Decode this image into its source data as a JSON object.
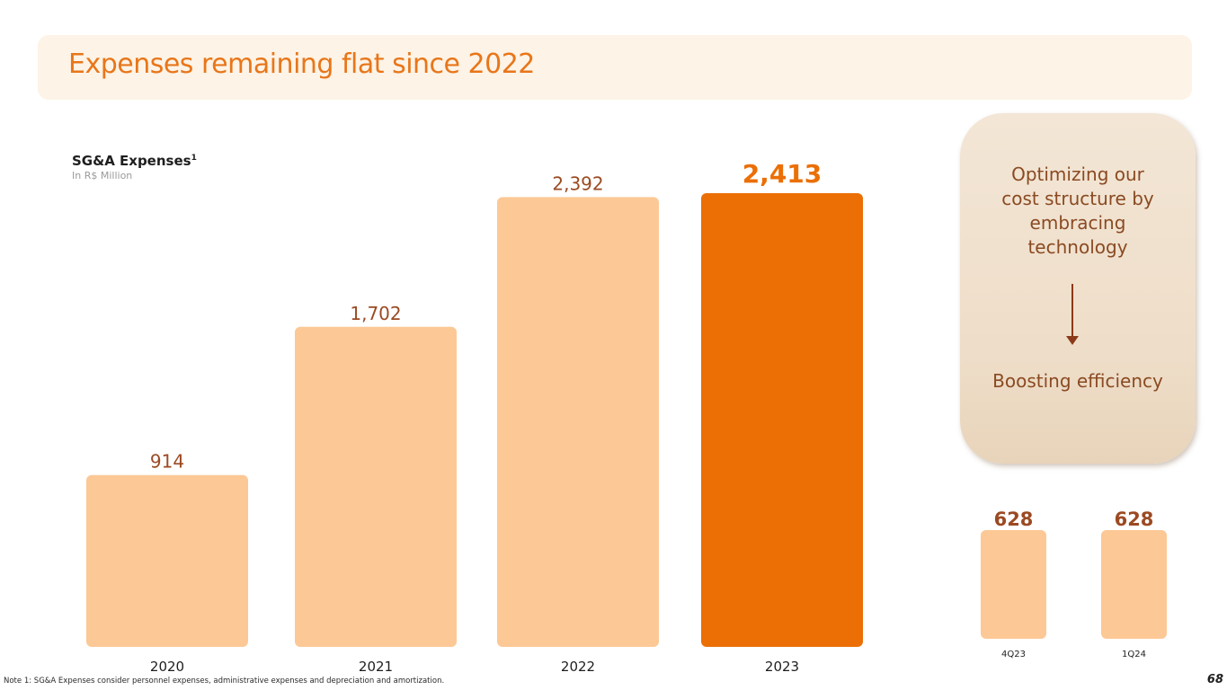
{
  "title": "Expenses remaining flat since 2022",
  "chart_data": [
    {
      "type": "bar",
      "title": "SG&A Expenses",
      "title_superscript": "1",
      "unit": "In R$ Million",
      "categories": [
        "2020",
        "2021",
        "2022",
        "2023"
      ],
      "values": [
        914,
        1702,
        2392,
        2413
      ],
      "highlight_category": "2023",
      "colors": {
        "bar": "#fcc895",
        "highlight": "#eb6f05",
        "label": "#9b4a22"
      }
    },
    {
      "type": "bar",
      "categories": [
        "4Q23",
        "1Q24"
      ],
      "values": [
        628,
        628
      ],
      "colors": {
        "bar": "#fcc895",
        "label": "#9b4a22"
      }
    }
  ],
  "callout": {
    "top_text": "Optimizing our cost structure by embracing technology",
    "bottom_text": "Boosting efficiency",
    "icon": "arrow-down-icon"
  },
  "footnote": "Note 1: SG&A Expenses consider personnel expenses, administrative expenses and depreciation and amortization.",
  "page_number": "68"
}
